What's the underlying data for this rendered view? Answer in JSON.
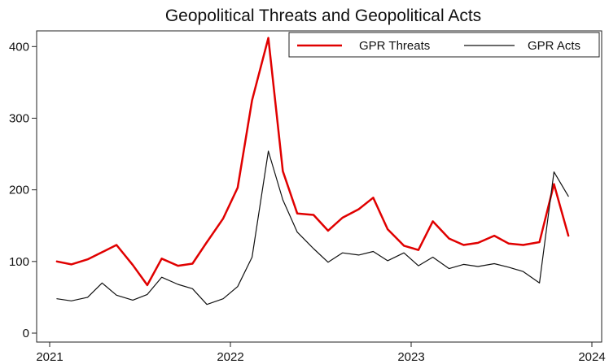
{
  "chart_data": {
    "type": "line",
    "title": "Geopolitical Threats and Geopolitical Acts",
    "xlabel": "",
    "ylabel": "",
    "xlim": [
      2021.0,
      2024.0
    ],
    "ylim": [
      0,
      425
    ],
    "x_ticks": [
      "2021",
      "2022",
      "2023",
      "2024"
    ],
    "y_ticks": [
      "0",
      "100",
      "200",
      "300",
      "400"
    ],
    "grid": false,
    "legend_position": "top-right",
    "series": [
      {
        "name": "GPR Threats",
        "color": "#e00000",
        "x": [
          2021.04,
          2021.12,
          2021.21,
          2021.29,
          2021.37,
          2021.46,
          2021.54,
          2021.62,
          2021.71,
          2021.79,
          2021.87,
          2021.96,
          2022.04,
          2022.12,
          2022.21,
          2022.29,
          2022.37,
          2022.46,
          2022.54,
          2022.62,
          2022.71,
          2022.79,
          2022.87,
          2022.96,
          2023.04,
          2023.12,
          2023.21,
          2023.29,
          2023.37,
          2023.46,
          2023.54,
          2023.62,
          2023.71,
          2023.79,
          2023.87
        ],
        "values": [
          100,
          96,
          103,
          113,
          123,
          95,
          67,
          104,
          94,
          97,
          127,
          160,
          203,
          325,
          412,
          226,
          167,
          165,
          143,
          161,
          173,
          189,
          145,
          122,
          116,
          156,
          132,
          123,
          126,
          136,
          125,
          123,
          127,
          208,
          136
        ]
      },
      {
        "name": "GPR Acts",
        "color": "#111111",
        "x": [
          2021.04,
          2021.12,
          2021.21,
          2021.29,
          2021.37,
          2021.46,
          2021.54,
          2021.62,
          2021.71,
          2021.79,
          2021.87,
          2021.96,
          2022.04,
          2022.12,
          2022.21,
          2022.29,
          2022.37,
          2022.46,
          2022.54,
          2022.62,
          2022.71,
          2022.79,
          2022.87,
          2022.96,
          2023.04,
          2023.12,
          2023.21,
          2023.29,
          2023.37,
          2023.46,
          2023.54,
          2023.62,
          2023.71,
          2023.79,
          2023.87
        ],
        "values": [
          48,
          45,
          50,
          70,
          53,
          46,
          54,
          78,
          68,
          62,
          40,
          48,
          65,
          106,
          254,
          186,
          141,
          118,
          99,
          112,
          109,
          114,
          101,
          112,
          94,
          106,
          90,
          96,
          93,
          97,
          92,
          86,
          70,
          225,
          191
        ]
      }
    ]
  }
}
